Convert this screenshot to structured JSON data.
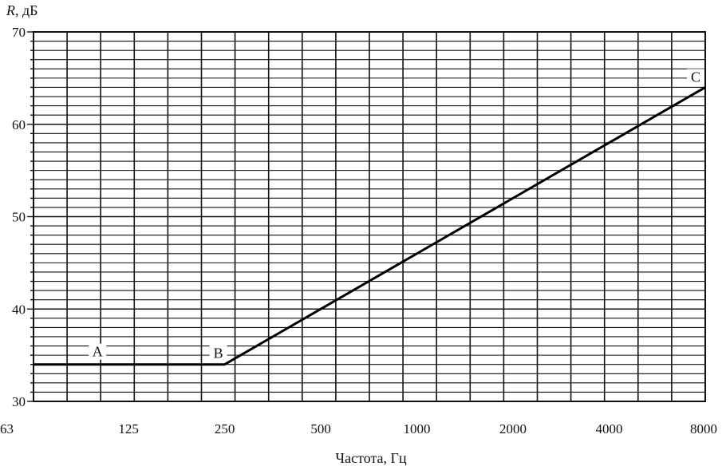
{
  "chart_data": {
    "type": "line",
    "xscale": "log",
    "ylabel_italic": "R",
    "ylabel_unit": ", дБ",
    "xlabel": "Частота,  Гц",
    "ylim": [
      30,
      70
    ],
    "x_ticks": [
      {
        "value": 63,
        "label": "63"
      },
      {
        "value": 125,
        "label": "125"
      },
      {
        "value": 250,
        "label": "250"
      },
      {
        "value": 500,
        "label": "500"
      },
      {
        "value": 1000,
        "label": "1000"
      },
      {
        "value": 2000,
        "label": "2000"
      },
      {
        "value": 4000,
        "label": "4000"
      },
      {
        "value": 8000,
        "label": "8000"
      }
    ],
    "y_ticks": [
      30,
      40,
      50,
      60,
      70
    ],
    "grid": true,
    "series": [
      {
        "x": [
          63,
          250,
          8000
        ],
        "y": [
          34,
          34,
          64
        ]
      }
    ],
    "points": [
      {
        "label": "A",
        "x": 100,
        "y": 34
      },
      {
        "label": "B",
        "x": 250,
        "y": 34
      },
      {
        "label": "C",
        "x": 8000,
        "y": 64
      }
    ]
  }
}
